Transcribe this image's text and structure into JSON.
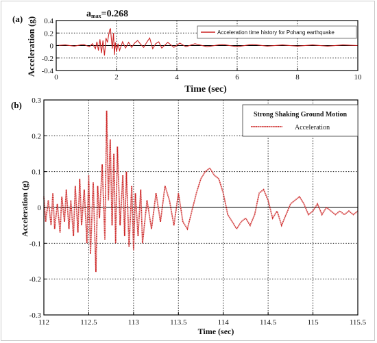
{
  "panel_a": {
    "label": "(a)",
    "amax_symbol": "a",
    "amax_sub": "max",
    "amax_value": "=0.268",
    "legend": "Acceleration time history for Pohang earthquake",
    "xlabel": "Time (sec)",
    "ylabel": "Acceleration (g)",
    "xticks": [
      "0",
      "2",
      "4",
      "6",
      "8",
      "10"
    ],
    "yticks": [
      "0.4",
      "0.2",
      "0",
      "-0.2",
      "-0.4"
    ]
  },
  "panel_b": {
    "label": "(b)",
    "legend_title": "Strong Shaking Ground Motion",
    "legend_entry": "Acceleration",
    "xlabel": "Time (sec)",
    "ylabel": "Acceleration (g)",
    "xticks": [
      "112",
      "112.5",
      "113",
      "113.5",
      "114",
      "114.5",
      "115",
      "115.5"
    ],
    "yticks": [
      "0.3",
      "0.2",
      "0.1",
      "0",
      "-0.1",
      "-0.2",
      "-0.3"
    ]
  },
  "colors": {
    "series": "#cc2222",
    "axis": "#000000"
  },
  "chart_data": [
    {
      "type": "line",
      "title": "",
      "xlabel": "Time (sec)",
      "ylabel": "Acceleration (g)",
      "xlim": [
        0,
        10
      ],
      "ylim": [
        -0.4,
        0.4
      ],
      "grid": true,
      "legend": "top-right",
      "series": [
        {
          "name": "Acceleration time history for Pohang earthquake",
          "x": [
            0,
            0.3,
            0.6,
            0.9,
            1.1,
            1.2,
            1.3,
            1.35,
            1.4,
            1.45,
            1.5,
            1.55,
            1.6,
            1.65,
            1.7,
            1.75,
            1.78,
            1.8,
            1.83,
            1.86,
            1.9,
            1.93,
            1.96,
            2.0,
            2.05,
            2.1,
            2.2,
            2.3,
            2.4,
            2.5,
            2.6,
            2.7,
            2.8,
            2.9,
            3.0,
            3.1,
            3.2,
            3.3,
            3.4,
            3.5,
            3.7,
            3.9,
            4.1,
            4.3,
            4.6,
            5.0,
            5.5,
            6.0,
            6.5,
            7.0,
            7.5,
            8.0,
            8.5,
            9.0,
            9.5,
            10.0
          ],
          "y": [
            0,
            0.01,
            -0.01,
            0.02,
            -0.02,
            0.03,
            -0.05,
            0.06,
            -0.08,
            0.1,
            -0.12,
            0.08,
            -0.16,
            0.12,
            0.05,
            0.2,
            0.26,
            0.268,
            0.1,
            -0.05,
            0.2,
            -0.15,
            0.05,
            -0.1,
            0.03,
            -0.08,
            0.06,
            -0.04,
            0.05,
            -0.03,
            0.04,
            0.08,
            0.02,
            -0.03,
            0.05,
            0.12,
            -0.05,
            0.03,
            0.06,
            -0.04,
            0.05,
            -0.03,
            0.04,
            -0.02,
            0.03,
            -0.02,
            0.02,
            -0.02,
            0.02,
            -0.01,
            0.01,
            -0.01,
            0.01,
            -0.01,
            0.01,
            0
          ]
        }
      ]
    },
    {
      "type": "line",
      "title": "",
      "xlabel": "Time (sec)",
      "ylabel": "Acceleration (g)",
      "xlim": [
        112,
        115.5
      ],
      "ylim": [
        -0.3,
        0.3
      ],
      "grid": true,
      "legend": "top-right",
      "series": [
        {
          "name": "Acceleration",
          "x": [
            112.0,
            112.02,
            112.05,
            112.08,
            112.1,
            112.12,
            112.15,
            112.18,
            112.2,
            112.23,
            112.25,
            112.28,
            112.3,
            112.33,
            112.35,
            112.38,
            112.4,
            112.42,
            112.45,
            112.48,
            112.5,
            112.52,
            112.55,
            112.58,
            112.6,
            112.62,
            112.65,
            112.68,
            112.7,
            112.72,
            112.74,
            112.76,
            112.78,
            112.8,
            112.82,
            112.85,
            112.88,
            112.9,
            112.92,
            112.95,
            112.98,
            113.0,
            113.02,
            113.05,
            113.08,
            113.1,
            113.15,
            113.2,
            113.25,
            113.3,
            113.35,
            113.4,
            113.45,
            113.5,
            113.55,
            113.6,
            113.65,
            113.7,
            113.75,
            113.8,
            113.85,
            113.9,
            113.95,
            114.0,
            114.05,
            114.1,
            114.15,
            114.2,
            114.25,
            114.3,
            114.35,
            114.4,
            114.45,
            114.5,
            114.55,
            114.6,
            114.65,
            114.7,
            114.75,
            114.8,
            114.85,
            114.9,
            114.95,
            115.0,
            115.05,
            115.1,
            115.15,
            115.2,
            115.25,
            115.3,
            115.35,
            115.4,
            115.45,
            115.5
          ],
          "y": [
            0.03,
            -0.04,
            0.02,
            -0.05,
            0.04,
            -0.06,
            0.01,
            -0.07,
            0.03,
            -0.04,
            0.05,
            -0.06,
            0.02,
            -0.08,
            0.06,
            -0.07,
            0.08,
            -0.05,
            0.05,
            -0.1,
            0.09,
            -0.13,
            0.07,
            -0.18,
            0.06,
            -0.03,
            0.12,
            -0.09,
            0.27,
            0.02,
            0.19,
            -0.05,
            0.15,
            -0.1,
            0.17,
            -0.05,
            0.09,
            -0.08,
            0.1,
            -0.11,
            0.06,
            -0.12,
            0.04,
            -0.08,
            0.05,
            -0.1,
            0.02,
            -0.06,
            0.04,
            -0.04,
            0.06,
            0.02,
            -0.05,
            0.04,
            -0.04,
            -0.06,
            -0.01,
            0.04,
            0.08,
            0.1,
            0.11,
            0.09,
            0.08,
            0.04,
            -0.02,
            -0.04,
            -0.06,
            -0.04,
            -0.03,
            -0.05,
            -0.02,
            0.04,
            0.05,
            0.02,
            -0.03,
            -0.01,
            -0.05,
            -0.02,
            0.01,
            0.02,
            0.03,
            0.01,
            -0.02,
            -0.01,
            0.01,
            -0.02,
            0.0,
            -0.01,
            -0.02,
            -0.01,
            -0.02,
            -0.01,
            -0.02,
            -0.01
          ]
        }
      ]
    }
  ]
}
